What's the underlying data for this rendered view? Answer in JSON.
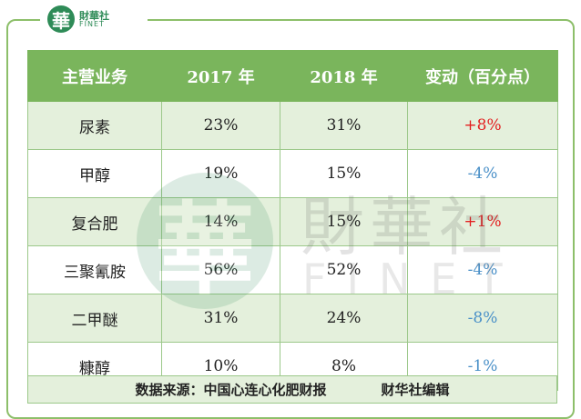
{
  "logo": {
    "mark": "華",
    "cn": "財華社",
    "en": "FINET"
  },
  "watermark": {
    "mark": "華",
    "cn": "財華社",
    "en": "FINET"
  },
  "headers": [
    "主营业务",
    "2017 年",
    "2018 年",
    "变动（百分点）"
  ],
  "rows": [
    {
      "business": "尿素",
      "y2017": "23%",
      "y2018": "31%",
      "change": "+8%",
      "dir": "pos"
    },
    {
      "business": "甲醇",
      "y2017": "19%",
      "y2018": "15%",
      "change": "-4%",
      "dir": "neg"
    },
    {
      "business": "复合肥",
      "y2017": "14%",
      "y2018": "15%",
      "change": "+1%",
      "dir": "pos"
    },
    {
      "business": "三聚氰胺",
      "y2017": "56%",
      "y2018": "52%",
      "change": "-4%",
      "dir": "neg"
    },
    {
      "business": "二甲醚",
      "y2017": "31%",
      "y2018": "24%",
      "change": "-8%",
      "dir": "neg"
    },
    {
      "business": "糠醇",
      "y2017": "10%",
      "y2018": "8%",
      "change": "-1%",
      "dir": "neg"
    }
  ],
  "footer": {
    "source": "数据来源：中国心连心化肥财报",
    "editor": "财华社编辑"
  },
  "colors": {
    "header_bg": "#7ab55c",
    "alt_row": "#e4f0dc",
    "positive": "#e32020",
    "negative": "#4a90c8"
  }
}
